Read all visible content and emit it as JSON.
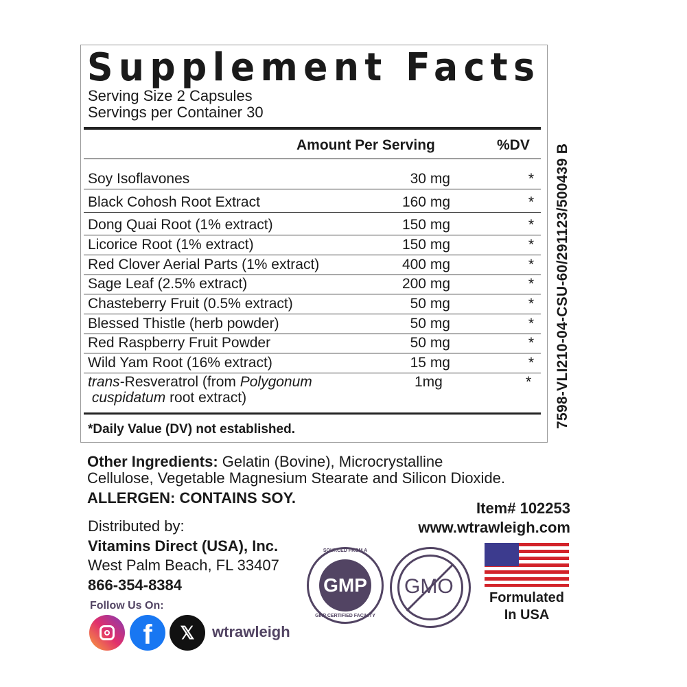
{
  "panel": {
    "title": "Supplement Facts",
    "serving_size": "Serving Size 2 Capsules",
    "servings_per_container": "Servings per Container 30",
    "col_amount": "Amount Per Serving",
    "col_dv": "%DV",
    "rows": [
      {
        "name": "Soy Isoflavones",
        "amount": "30 mg",
        "dv": "*"
      },
      {
        "name": "Black Cohosh Root Extract",
        "amount": "160 mg",
        "dv": "*"
      },
      {
        "name": "Dong Quai Root (1% extract)",
        "amount": "150 mg",
        "dv": "*"
      },
      {
        "name": "Licorice Root (1% extract)",
        "amount": "150 mg",
        "dv": "*"
      },
      {
        "name": "Red Clover Aerial Parts (1% extract)",
        "amount": "400 mg",
        "dv": "*"
      },
      {
        "name": "Sage Leaf (2.5% extract)",
        "amount": "200 mg",
        "dv": "*"
      },
      {
        "name": "Chasteberry Fruit (0.5% extract)",
        "amount": "50 mg",
        "dv": "*"
      },
      {
        "name": "Blessed Thistle (herb powder)",
        "amount": "50 mg",
        "dv": "*"
      },
      {
        "name": "Red Raspberry Fruit Powder",
        "amount": "50 mg",
        "dv": "*"
      },
      {
        "name": "Wild Yam Root (16% extract)",
        "amount": "15 mg",
        "dv": "*"
      }
    ],
    "last_row": {
      "italic1": "trans",
      "text1": "-Resveratrol (from ",
      "italic2": "Polygonum",
      "italic3": "cuspidatum",
      "text2": " root extract)",
      "amount": "1mg",
      "dv": "*"
    },
    "footnote": "*Daily Value (DV) not established."
  },
  "side_code": "7598-VLI210-04-CSU-60/291123/500439 B",
  "other": {
    "label": "Other Ingredients:",
    "line1": " Gelatin (Bovine), Microcrystalline",
    "line2": "Cellulose, Vegetable Magnesium Stearate and Silicon Dioxide.",
    "allergen": "ALLERGEN: CONTAINS SOY."
  },
  "item": "Item# 102253",
  "website": "www.wtrawleigh.com",
  "distributor": {
    "label": "Distributed by:",
    "name": "Vitamins Direct (USA), Inc.",
    "address": "West Palm Beach, FL 33407",
    "phone": "866-354-8384"
  },
  "social": {
    "follow": "Follow Us On:",
    "handle": "wtrawleigh",
    "icons": [
      "instagram-icon",
      "facebook-icon",
      "x-icon"
    ]
  },
  "badges": {
    "gmp_top": "SOURCED FROM A",
    "gmp_center": "GMP",
    "gmp_bottom": "GMP CERTIFIED FACILITY",
    "gmo": "GMO",
    "usa_line1": "Formulated",
    "usa_line2": "In USA"
  },
  "colors": {
    "badge": "#524463",
    "flag_red": "#d2232a",
    "flag_blue": "#3c3b8e"
  }
}
